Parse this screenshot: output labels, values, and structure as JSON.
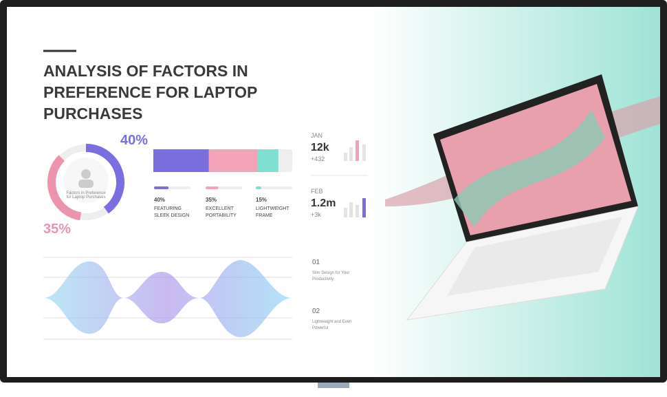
{
  "title": "ANALYSIS OF FACTORS IN PREFERENCE FOR LAPTOP PURCHASES",
  "donut": {
    "caption": "Factors in Preference for Laptop Purchases",
    "segments": [
      {
        "value": 40,
        "label": "40%",
        "color": "#7b6ee0"
      },
      {
        "value": 35,
        "label": "35%",
        "color": "#ec93ad"
      }
    ]
  },
  "factors": [
    {
      "value": 40,
      "label": "40%",
      "name": "FEATURING SLEEK DESIGN",
      "color": "#7b6ee0"
    },
    {
      "value": 35,
      "label": "35%",
      "name": "EXCELLENT PORTABILITY",
      "color": "#f2a3b8"
    },
    {
      "value": 15,
      "label": "15%",
      "name": "LIGHTWEIGHT FRAME",
      "color": "#7fe0d0"
    }
  ],
  "stats": [
    {
      "month": "JAN",
      "value": "12k",
      "change": "+432"
    },
    {
      "month": "FEB",
      "value": "1.2m",
      "change": "+3k"
    }
  ],
  "points": [
    {
      "number": "01",
      "text": "Slim Design for Your Productivity"
    },
    {
      "number": "02",
      "text": "Lightweight and Even Powerful"
    }
  ]
}
